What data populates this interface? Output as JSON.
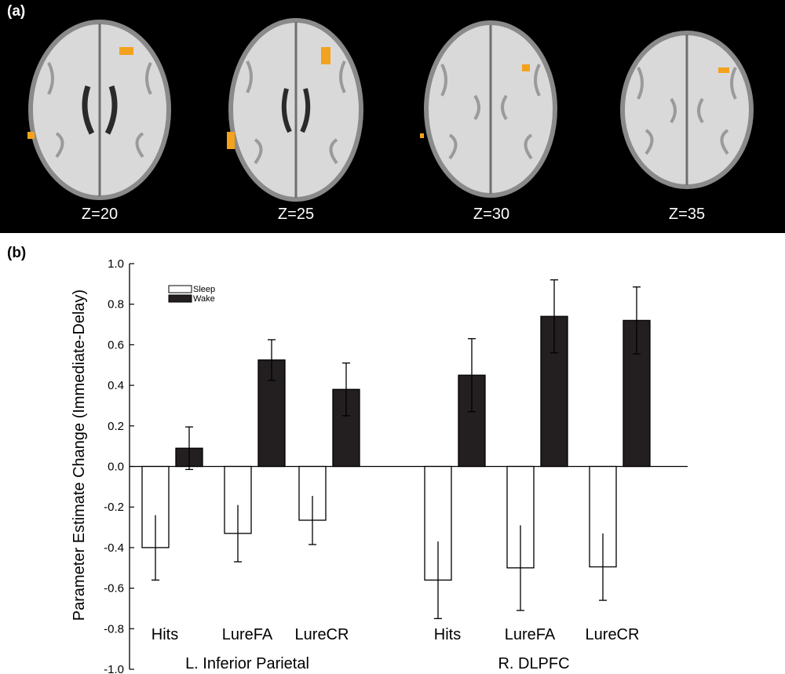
{
  "panel_a": {
    "label": "(a)",
    "slices": [
      {
        "label": "Z=20"
      },
      {
        "label": "Z=25"
      },
      {
        "label": "Z=30"
      },
      {
        "label": "Z=35"
      }
    ],
    "colors": {
      "background": "#000000",
      "brain": "#d9d9d9",
      "activation": "#f2a21c"
    }
  },
  "panel_b": {
    "label": "(b)"
  },
  "chart_data": {
    "type": "bar",
    "ylabel": "Parameter Estimate Change (Immediate-Delay)",
    "ylim": [
      -1.0,
      1.0
    ],
    "yticks": [
      "1.0",
      "0.8",
      "0.6",
      "0.4",
      "0.2",
      "0.0",
      "-0.2",
      "-0.4",
      "-0.6",
      "-0.8",
      "-1.0"
    ],
    "grid": false,
    "legend_position": "top-left",
    "series": [
      {
        "name": "Sleep",
        "fill": "#ffffff"
      },
      {
        "name": "Wake",
        "fill": "#231f20"
      }
    ],
    "groups": [
      {
        "name": "L. Inferior Parietal",
        "categories": [
          "Hits",
          "LureFA",
          "LureCR"
        ],
        "values": {
          "Sleep": [
            -0.4,
            -0.33,
            -0.265
          ],
          "Wake": [
            0.09,
            0.525,
            0.38
          ]
        },
        "errors": {
          "Sleep": [
            0.16,
            0.14,
            0.12
          ],
          "Wake": [
            0.105,
            0.1,
            0.13
          ]
        }
      },
      {
        "name": "R. DLPFC",
        "categories": [
          "Hits",
          "LureFA",
          "LureCR"
        ],
        "values": {
          "Sleep": [
            -0.56,
            -0.5,
            -0.495
          ],
          "Wake": [
            0.45,
            0.74,
            0.72
          ]
        },
        "errors": {
          "Sleep": [
            0.19,
            0.21,
            0.165
          ],
          "Wake": [
            0.18,
            0.18,
            0.165
          ]
        }
      }
    ]
  }
}
